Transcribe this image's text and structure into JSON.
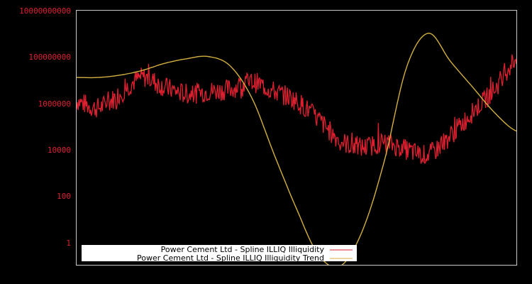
{
  "chart_data": {
    "type": "line",
    "title": "",
    "xlabel": "",
    "ylabel": "",
    "yscale": "log",
    "ylim": [
      0.1,
      10000000000
    ],
    "y_ticks": [
      "10000000000",
      "100000000",
      "1000000",
      "10000",
      "100",
      "1"
    ],
    "y_tick_values": [
      10000000000,
      100000000,
      1000000,
      10000,
      100,
      1
    ],
    "x_ticks": [],
    "grid": false,
    "legend_position": "bottom-left inside",
    "colors": {
      "background": "#000000",
      "frame": "#c8c8c8",
      "tick_label": "#dc2030",
      "series_1": "#dc2030",
      "series_2": "#d4b040"
    },
    "x": [
      0,
      5,
      10,
      15,
      20,
      25,
      30,
      35,
      40,
      45,
      50,
      55,
      60,
      65,
      70,
      75,
      80,
      85,
      90,
      95,
      100
    ],
    "series": [
      {
        "name": "Power Cement Ltd - Spline ILLIQ Illiquidity",
        "log10_values": [
          6.1,
          5.8,
          6.4,
          7.1,
          6.7,
          6.4,
          6.5,
          6.6,
          6.9,
          6.5,
          6.1,
          5.3,
          4.4,
          4.1,
          4.3,
          4.0,
          3.8,
          4.6,
          5.6,
          6.6,
          7.9
        ]
      },
      {
        "name": "Power Cement Ltd - Spline ILLIQ Illiquidity Trend",
        "log10_values": [
          7.1,
          7.1,
          7.2,
          7.4,
          7.7,
          7.9,
          8.0,
          7.6,
          6.2,
          3.8,
          1.5,
          -0.5,
          -1.0,
          0.5,
          3.5,
          7.5,
          9.0,
          7.8,
          6.7,
          5.6,
          4.8
        ]
      }
    ],
    "series_full_x_pixels_note": "values sampled across plot width"
  },
  "axis": {
    "tick_labels": [
      "10000000000",
      "100000000",
      "1000000",
      "10000",
      "100",
      "1"
    ]
  },
  "legend": {
    "items": [
      {
        "label": "Power Cement Ltd - Spline ILLIQ Illiquidity",
        "color": "#dc2030"
      },
      {
        "label": "Power Cement Ltd - Spline ILLIQ Illiquidity Trend",
        "color": "#d4b040"
      }
    ]
  }
}
